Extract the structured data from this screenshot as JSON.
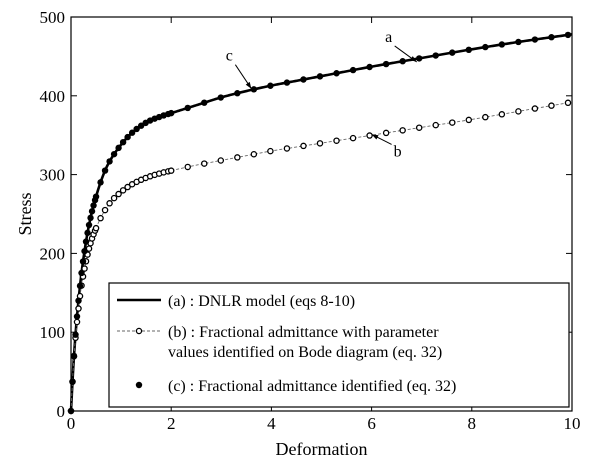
{
  "chart_data": {
    "type": "line",
    "xlabel": "Deformation",
    "ylabel": "Stress",
    "xlim": [
      0,
      10
    ],
    "ylim": [
      0,
      500
    ],
    "xticks": [
      0,
      2,
      4,
      6,
      8,
      10
    ],
    "yticks": [
      0,
      100,
      200,
      300,
      400,
      500
    ],
    "grid": false,
    "legend_position": "bottom-right",
    "series": [
      {
        "name": "(a) : DNLR model (eqs 8-10)",
        "style": "solid-line",
        "x": [
          0,
          0.02,
          0.05,
          0.1,
          0.15,
          0.2,
          0.3,
          0.4,
          0.5,
          0.6,
          0.7,
          0.8,
          1.0,
          1.2,
          1.5,
          1.8,
          2.0,
          2.5,
          3.0,
          3.5,
          4.0,
          4.5,
          5.0,
          6.0,
          7.0,
          8.0,
          9.0,
          10.0
        ],
        "y": [
          0,
          25,
          60,
          105,
          140,
          170,
          215,
          248,
          272,
          292,
          308,
          320,
          338,
          352,
          366,
          374,
          378,
          388,
          398,
          406,
          413,
          419,
          425,
          437,
          448,
          459,
          469,
          478
        ]
      },
      {
        "name": "(b) : Fractional admittance with parameter\nvalues identified on Bode diagram (eq. 32)",
        "style": "dashed-open-circles",
        "x": [
          0,
          0.02,
          0.05,
          0.1,
          0.15,
          0.2,
          0.3,
          0.4,
          0.5,
          0.6,
          0.7,
          0.8,
          1.0,
          1.2,
          1.5,
          1.8,
          2.0,
          2.5,
          3.0,
          3.5,
          4.0,
          4.5,
          5.0,
          6.0,
          7.0,
          8.0,
          9.0,
          10.0
        ],
        "y": [
          0,
          25,
          60,
          100,
          130,
          155,
          190,
          215,
          232,
          246,
          257,
          266,
          278,
          287,
          296,
          302,
          305,
          312,
          318,
          324,
          330,
          335,
          340,
          350,
          360,
          370,
          381,
          392
        ]
      },
      {
        "name": "(c) : Fractional admittance identified (eq. 32)",
        "style": "filled-dots",
        "x": [
          0,
          0.02,
          0.05,
          0.1,
          0.15,
          0.2,
          0.3,
          0.4,
          0.5,
          0.6,
          0.7,
          0.8,
          1.0,
          1.2,
          1.5,
          1.8,
          2.0,
          2.5,
          3.0,
          3.5,
          4.0,
          4.5,
          5.0,
          6.0,
          7.0,
          8.0,
          9.0,
          10.0
        ],
        "y": [
          0,
          25,
          60,
          105,
          140,
          170,
          215,
          248,
          272,
          292,
          308,
          320,
          338,
          352,
          366,
          374,
          378,
          388,
          398,
          406,
          413,
          419,
          425,
          437,
          448,
          459,
          469,
          478
        ]
      }
    ],
    "annotations": [
      {
        "label": "a",
        "arrow_to": [
          6.9,
          443
        ]
      },
      {
        "label": "c",
        "arrow_to": [
          3.6,
          409
        ]
      },
      {
        "label": "b",
        "arrow_to": [
          6.0,
          351
        ]
      }
    ]
  }
}
